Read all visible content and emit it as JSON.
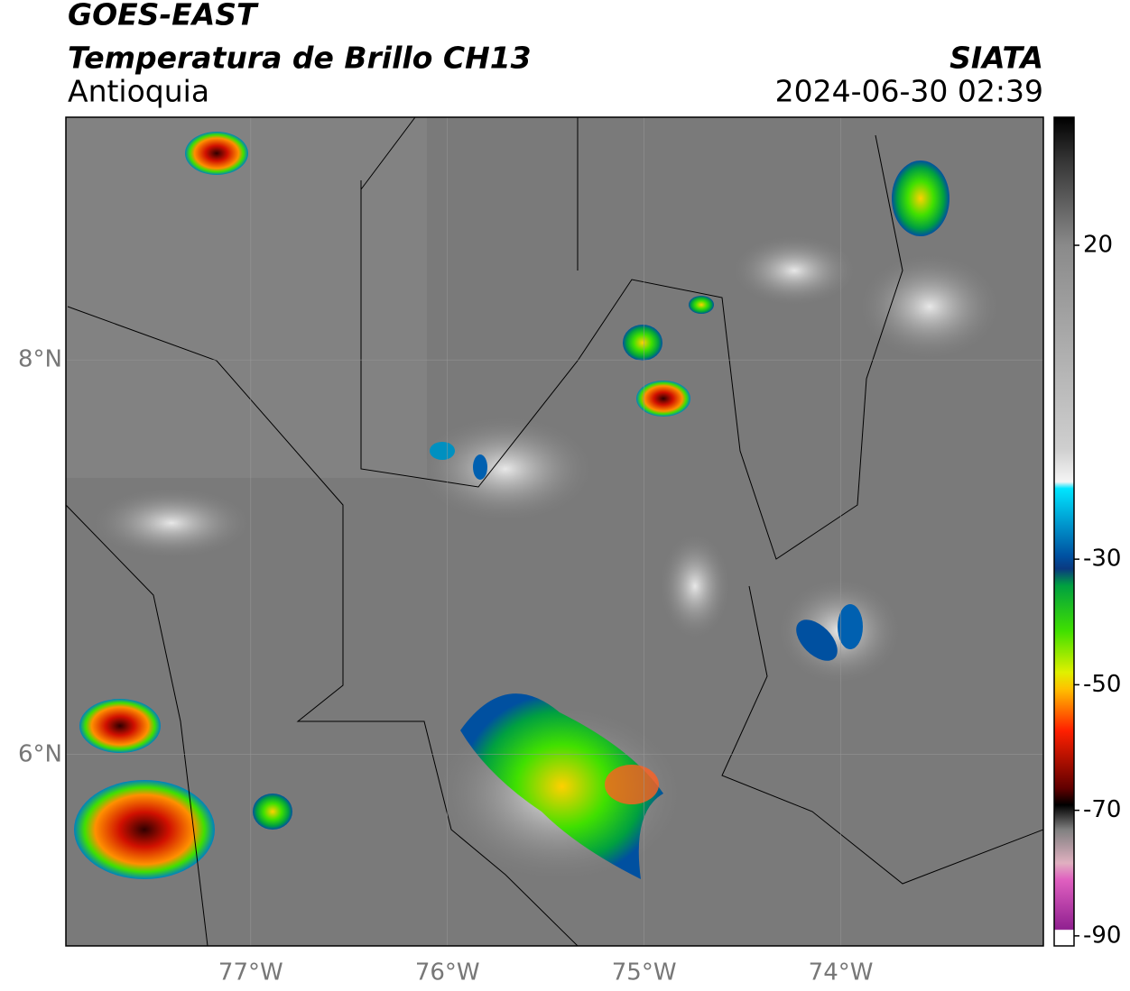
{
  "header": {
    "title": "GOES-EAST",
    "subtitle": "Temperatura de Brillo CH13",
    "region": "Antioquia",
    "source": "SIATA",
    "datetime": "2024-06-30 02:39"
  },
  "map": {
    "xlim": [
      -77.94,
      -72.97
    ],
    "ylim": [
      5.03,
      9.23
    ],
    "xticks": [
      {
        "value": -77,
        "label": "77°W"
      },
      {
        "value": -76,
        "label": "76°W"
      },
      {
        "value": -75,
        "label": "75°W"
      },
      {
        "value": -74,
        "label": "74°W"
      }
    ],
    "yticks": [
      {
        "value": 8,
        "label": "8°N"
      },
      {
        "value": 6,
        "label": "6°N"
      }
    ],
    "grid": true
  },
  "colorbar": {
    "ylim": [
      -91.6,
      40.4
    ],
    "yticks": [
      20,
      -30,
      -50,
      -70,
      -90
    ]
  }
}
